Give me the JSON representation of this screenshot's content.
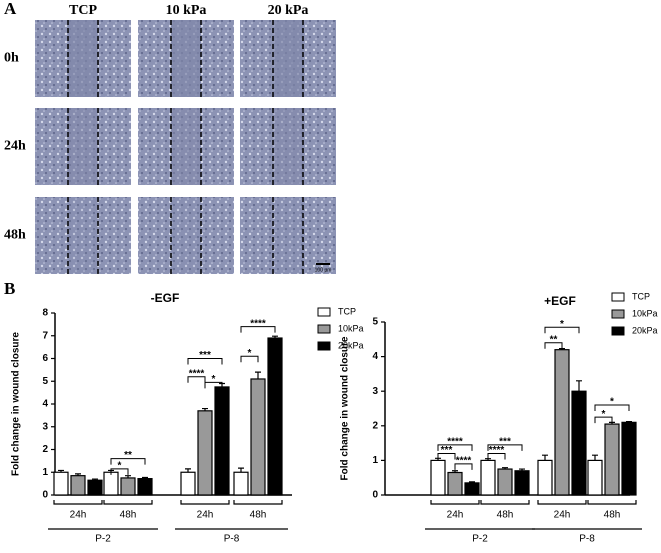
{
  "panel_a": {
    "label": "A",
    "columns": [
      "TCP",
      "10 kPa",
      "20 kPa"
    ],
    "rows": [
      "0h",
      "24h",
      "48h"
    ],
    "scale_bar": "100 µm"
  },
  "panel_b": {
    "label": "B"
  },
  "chart_data": [
    {
      "type": "bar",
      "title": "-EGF",
      "ylabel": "Fold change in wound closure",
      "categories": [
        "24h",
        "48h",
        "24h",
        "48h"
      ],
      "groups": [
        "P-2",
        "P-8"
      ],
      "ylim": [
        0,
        8
      ],
      "yticks": [
        0,
        1,
        2,
        3,
        4,
        5,
        6,
        7,
        8
      ],
      "series": [
        {
          "name": "TCP",
          "color": "#ffffff",
          "values": [
            1,
            1,
            1,
            1
          ],
          "errors": [
            0.08,
            0.08,
            0.15,
            0.18
          ]
        },
        {
          "name": "10kPa",
          "color": "#999999",
          "values": [
            0.85,
            0.75,
            3.7,
            5.1
          ],
          "errors": [
            0.08,
            0.1,
            0.1,
            0.3
          ]
        },
        {
          "name": "20kPa",
          "color": "#000000",
          "values": [
            0.65,
            0.72,
            4.75,
            6.9
          ],
          "errors": [
            0.05,
            0.05,
            0.15,
            0.08
          ]
        }
      ],
      "significance": [
        "**",
        "*",
        "***",
        "****",
        "*",
        "****",
        "*"
      ]
    },
    {
      "type": "bar",
      "title": "+EGF",
      "ylabel": "Fold change in wound closure",
      "categories": [
        "24h",
        "48h",
        "24h",
        "48h"
      ],
      "groups": [
        "P-2",
        "P-8"
      ],
      "ylim": [
        0,
        5
      ],
      "yticks": [
        0,
        1,
        2,
        3,
        4,
        5
      ],
      "series": [
        {
          "name": "TCP",
          "color": "#ffffff",
          "values": [
            1,
            1,
            1,
            1
          ],
          "errors": [
            0.06,
            0.05,
            0.15,
            0.15
          ]
        },
        {
          "name": "10kPa",
          "color": "#999999",
          "values": [
            0.65,
            0.75,
            4.2,
            2.05
          ],
          "errors": [
            0.05,
            0.04,
            0.03,
            0.05
          ]
        },
        {
          "name": "20kPa",
          "color": "#000000",
          "values": [
            0.35,
            0.7,
            3.0,
            2.1
          ],
          "errors": [
            0.03,
            0.05,
            0.3,
            0.02
          ]
        }
      ],
      "significance": [
        "****",
        "***",
        "****",
        "***",
        "****",
        "*",
        "**",
        "*",
        "*"
      ]
    }
  ]
}
